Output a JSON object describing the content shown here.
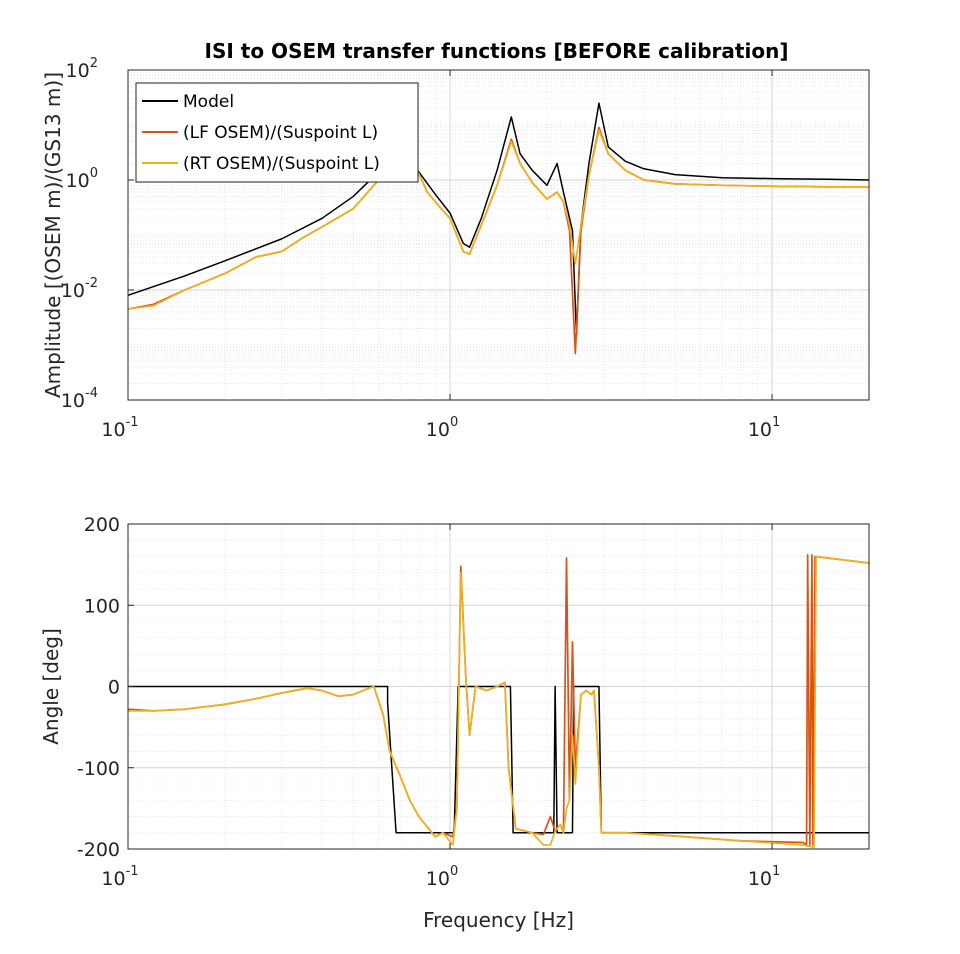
{
  "colors": {
    "model": "#000000",
    "lf_osem": "#d95319",
    "rt_osem": "#edb120",
    "grid_major": "#d6d6d6",
    "grid_minor": "#e6e6e6",
    "axes": "#262626"
  },
  "chart_data": [
    {
      "type": "line",
      "title": "ISI to OSEM transfer functions [BEFORE calibration]",
      "xlabel": "",
      "ylabel": "Amplitude [(OSEM m)/(GS13 m)]",
      "xscale": "log",
      "yscale": "log",
      "xlim": [
        0.1,
        20
      ],
      "ylim": [
        0.0001,
        100
      ],
      "xticks": [
        {
          "base": "10",
          "exp": "-1",
          "value": 0.1
        },
        {
          "base": "10",
          "exp": "0",
          "value": 1
        },
        {
          "base": "10",
          "exp": "1",
          "value": 10
        }
      ],
      "yticks": [
        {
          "base": "10",
          "exp": "-4",
          "value": 0.0001
        },
        {
          "base": "10",
          "exp": "-2",
          "value": 0.01
        },
        {
          "base": "10",
          "exp": "0",
          "value": 1
        },
        {
          "base": "10",
          "exp": "2",
          "value": 100
        }
      ],
      "grid": "major and minor",
      "legend_position": "top-left",
      "series": [
        {
          "name": "Model",
          "color_key": "model",
          "points": [
            [
              0.1,
              0.008
            ],
            [
              0.15,
              0.018
            ],
            [
              0.2,
              0.034
            ],
            [
              0.3,
              0.085
            ],
            [
              0.4,
              0.2
            ],
            [
              0.5,
              0.5
            ],
            [
              0.6,
              1.4
            ],
            [
              0.65,
              2.5
            ],
            [
              0.7,
              3.2
            ],
            [
              0.74,
              1.9
            ],
            [
              0.8,
              1.4
            ],
            [
              0.9,
              0.55
            ],
            [
              1.0,
              0.25
            ],
            [
              1.1,
              0.07
            ],
            [
              1.15,
              0.06
            ],
            [
              1.25,
              0.2
            ],
            [
              1.4,
              1.5
            ],
            [
              1.55,
              14
            ],
            [
              1.65,
              3.0
            ],
            [
              1.8,
              1.5
            ],
            [
              2.0,
              0.8
            ],
            [
              2.15,
              2.0
            ],
            [
              2.25,
              0.6
            ],
            [
              2.4,
              0.12
            ],
            [
              2.47,
              0.0015
            ],
            [
              2.55,
              0.15
            ],
            [
              2.7,
              2.0
            ],
            [
              2.9,
              25
            ],
            [
              3.1,
              4.0
            ],
            [
              3.5,
              2.2
            ],
            [
              4.0,
              1.6
            ],
            [
              5.0,
              1.25
            ],
            [
              7.0,
              1.1
            ],
            [
              10.0,
              1.06
            ],
            [
              15.0,
              1.03
            ],
            [
              20.0,
              1.0
            ]
          ]
        },
        {
          "name": "(LF OSEM)/(Suspoint L)",
          "color_key": "lf_osem",
          "points": [
            [
              0.1,
              0.0045
            ],
            [
              0.12,
              0.0055
            ],
            [
              0.15,
              0.01
            ],
            [
              0.2,
              0.02
            ],
            [
              0.25,
              0.04
            ],
            [
              0.3,
              0.05
            ],
            [
              0.35,
              0.09
            ],
            [
              0.4,
              0.14
            ],
            [
              0.5,
              0.3
            ],
            [
              0.6,
              1.0
            ],
            [
              0.65,
              1.8
            ],
            [
              0.7,
              2.4
            ],
            [
              0.75,
              1.8
            ],
            [
              0.8,
              1.3
            ],
            [
              0.85,
              0.6
            ],
            [
              0.9,
              0.4
            ],
            [
              1.0,
              0.2
            ],
            [
              1.1,
              0.05
            ],
            [
              1.15,
              0.045
            ],
            [
              1.25,
              0.15
            ],
            [
              1.4,
              0.8
            ],
            [
              1.55,
              5.5
            ],
            [
              1.65,
              2.0
            ],
            [
              1.8,
              0.9
            ],
            [
              2.0,
              0.45
            ],
            [
              2.15,
              0.6
            ],
            [
              2.25,
              0.4
            ],
            [
              2.35,
              0.12
            ],
            [
              2.45,
              0.0007
            ],
            [
              2.55,
              0.12
            ],
            [
              2.7,
              1.2
            ],
            [
              2.9,
              9.0
            ],
            [
              3.1,
              3.0
            ],
            [
              3.5,
              1.5
            ],
            [
              4.0,
              1.0
            ],
            [
              5.0,
              0.85
            ],
            [
              7.0,
              0.8
            ],
            [
              10.0,
              0.77
            ],
            [
              15.0,
              0.75
            ],
            [
              20.0,
              0.75
            ]
          ]
        },
        {
          "name": "(RT OSEM)/(Suspoint L)",
          "color_key": "rt_osem",
          "points": [
            [
              0.1,
              0.0045
            ],
            [
              0.12,
              0.0052
            ],
            [
              0.15,
              0.01
            ],
            [
              0.2,
              0.02
            ],
            [
              0.25,
              0.04
            ],
            [
              0.3,
              0.05
            ],
            [
              0.35,
              0.09
            ],
            [
              0.4,
              0.14
            ],
            [
              0.5,
              0.3
            ],
            [
              0.6,
              1.0
            ],
            [
              0.65,
              1.8
            ],
            [
              0.7,
              2.4
            ],
            [
              0.75,
              1.8
            ],
            [
              0.8,
              1.3
            ],
            [
              0.85,
              0.6
            ],
            [
              0.9,
              0.4
            ],
            [
              1.0,
              0.2
            ],
            [
              1.1,
              0.05
            ],
            [
              1.15,
              0.045
            ],
            [
              1.25,
              0.15
            ],
            [
              1.4,
              0.8
            ],
            [
              1.55,
              5.0
            ],
            [
              1.65,
              2.0
            ],
            [
              1.8,
              0.9
            ],
            [
              2.0,
              0.45
            ],
            [
              2.15,
              0.6
            ],
            [
              2.25,
              0.4
            ],
            [
              2.35,
              0.15
            ],
            [
              2.45,
              0.03
            ],
            [
              2.55,
              0.15
            ],
            [
              2.7,
              1.2
            ],
            [
              2.9,
              8.0
            ],
            [
              3.1,
              3.0
            ],
            [
              3.5,
              1.5
            ],
            [
              4.0,
              1.0
            ],
            [
              5.0,
              0.85
            ],
            [
              7.0,
              0.8
            ],
            [
              10.0,
              0.77
            ],
            [
              15.0,
              0.75
            ],
            [
              20.0,
              0.75
            ]
          ]
        }
      ]
    },
    {
      "type": "line",
      "title": "",
      "xlabel": "Frequency [Hz]",
      "ylabel": "Angle [deg]",
      "xscale": "log",
      "yscale": "linear",
      "xlim": [
        0.1,
        20
      ],
      "ylim": [
        -200,
        200
      ],
      "xticks": [
        {
          "base": "10",
          "exp": "-1",
          "value": 0.1
        },
        {
          "base": "10",
          "exp": "0",
          "value": 1
        },
        {
          "base": "10",
          "exp": "1",
          "value": 10
        }
      ],
      "yticks": [
        {
          "label": "200",
          "value": 200
        },
        {
          "label": "100",
          "value": 100
        },
        {
          "label": "0",
          "value": 0
        },
        {
          "label": "-100",
          "value": -100
        },
        {
          "label": "-200",
          "value": -200
        }
      ],
      "grid": "major and minor",
      "series": [
        {
          "name": "Model",
          "color_key": "model",
          "points": [
            [
              0.1,
              0
            ],
            [
              0.64,
              0
            ],
            [
              0.64,
              -20
            ],
            [
              0.68,
              -180
            ],
            [
              1.03,
              -180
            ],
            [
              1.06,
              0
            ],
            [
              1.54,
              0
            ],
            [
              1.57,
              -180
            ],
            [
              2.1,
              -180
            ],
            [
              2.12,
              0
            ],
            [
              2.15,
              -180
            ],
            [
              2.4,
              -180
            ],
            [
              2.42,
              0
            ],
            [
              2.9,
              0
            ],
            [
              2.95,
              -180
            ],
            [
              20,
              -180
            ]
          ]
        },
        {
          "name": "(LF OSEM)/(Suspoint L)",
          "color_key": "lf_osem",
          "points": [
            [
              0.1,
              -28
            ],
            [
              0.12,
              -30
            ],
            [
              0.15,
              -28
            ],
            [
              0.2,
              -22
            ],
            [
              0.25,
              -15
            ],
            [
              0.3,
              -8
            ],
            [
              0.36,
              -2
            ],
            [
              0.4,
              -5
            ],
            [
              0.45,
              -12
            ],
            [
              0.5,
              -10
            ],
            [
              0.56,
              -2
            ],
            [
              0.58,
              0
            ],
            [
              0.62,
              -35
            ],
            [
              0.65,
              -80
            ],
            [
              0.7,
              -110
            ],
            [
              0.75,
              -140
            ],
            [
              0.8,
              -160
            ],
            [
              0.9,
              -185
            ],
            [
              0.95,
              -180
            ],
            [
              1.02,
              -185
            ],
            [
              1.05,
              -150
            ],
            [
              1.08,
              148
            ],
            [
              1.12,
              10
            ],
            [
              1.15,
              -60
            ],
            [
              1.2,
              0
            ],
            [
              1.3,
              -5
            ],
            [
              1.4,
              0
            ],
            [
              1.48,
              5
            ],
            [
              1.52,
              -100
            ],
            [
              1.6,
              -175
            ],
            [
              1.8,
              -180
            ],
            [
              1.95,
              -182
            ],
            [
              2.05,
              -160
            ],
            [
              2.12,
              -178
            ],
            [
              2.2,
              -170
            ],
            [
              2.25,
              -180
            ],
            [
              2.3,
              158
            ],
            [
              2.35,
              -140
            ],
            [
              2.4,
              55
            ],
            [
              2.45,
              -100
            ],
            [
              2.55,
              -10
            ],
            [
              2.65,
              -5
            ],
            [
              2.75,
              -10
            ],
            [
              2.8,
              -5
            ],
            [
              2.9,
              -100
            ],
            [
              2.95,
              -180
            ],
            [
              3.5,
              -180
            ],
            [
              5,
              -184
            ],
            [
              8,
              -190
            ],
            [
              12.5,
              -192
            ],
            [
              12.8,
              -195
            ],
            [
              12.9,
              162
            ],
            [
              13.1,
              -195
            ],
            [
              13.3,
              162
            ],
            [
              13.4,
              -195
            ],
            [
              13.6,
              160
            ],
            [
              20,
              152
            ]
          ]
        },
        {
          "name": "(RT OSEM)/(Suspoint L)",
          "color_key": "rt_osem",
          "points": [
            [
              0.1,
              -30
            ],
            [
              0.12,
              -30
            ],
            [
              0.15,
              -28
            ],
            [
              0.2,
              -22
            ],
            [
              0.25,
              -15
            ],
            [
              0.3,
              -8
            ],
            [
              0.36,
              -2
            ],
            [
              0.4,
              -5
            ],
            [
              0.45,
              -12
            ],
            [
              0.5,
              -10
            ],
            [
              0.56,
              -2
            ],
            [
              0.58,
              0
            ],
            [
              0.62,
              -35
            ],
            [
              0.65,
              -80
            ],
            [
              0.7,
              -110
            ],
            [
              0.75,
              -140
            ],
            [
              0.8,
              -160
            ],
            [
              0.9,
              -185
            ],
            [
              0.95,
              -180
            ],
            [
              1.02,
              -195
            ],
            [
              1.05,
              -150
            ],
            [
              1.08,
              140
            ],
            [
              1.12,
              10
            ],
            [
              1.15,
              -60
            ],
            [
              1.2,
              0
            ],
            [
              1.3,
              -5
            ],
            [
              1.4,
              0
            ],
            [
              1.48,
              5
            ],
            [
              1.52,
              -100
            ],
            [
              1.6,
              -175
            ],
            [
              1.8,
              -180
            ],
            [
              1.95,
              -195
            ],
            [
              2.05,
              -195
            ],
            [
              2.12,
              -178
            ],
            [
              2.2,
              -170
            ],
            [
              2.25,
              -180
            ],
            [
              2.3,
              -150
            ],
            [
              2.35,
              -140
            ],
            [
              2.4,
              -60
            ],
            [
              2.45,
              -120
            ],
            [
              2.55,
              -10
            ],
            [
              2.65,
              -5
            ],
            [
              2.75,
              -10
            ],
            [
              2.8,
              -5
            ],
            [
              2.9,
              -100
            ],
            [
              2.95,
              -180
            ],
            [
              3.5,
              -180
            ],
            [
              5,
              -184
            ],
            [
              8,
              -190
            ],
            [
              12.5,
              -195
            ],
            [
              13.5,
              -198
            ],
            [
              13.7,
              160
            ],
            [
              20,
              152
            ]
          ]
        }
      ]
    }
  ]
}
